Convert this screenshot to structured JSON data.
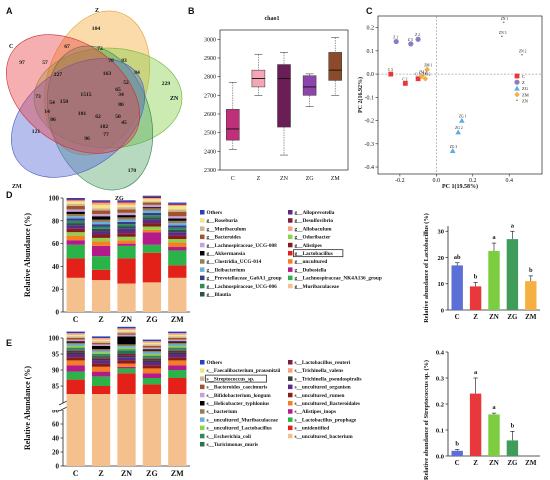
{
  "panels": {
    "a": "A",
    "b": "B",
    "c": "C",
    "d": "D",
    "e": "E"
  },
  "colors": {
    "C": "#e8383b",
    "Z": "#f5b041",
    "ZN": "#7ccd3f",
    "ZG": "#3f9c5a",
    "ZM": "#5c6fd6",
    "box_C": "#c0307a",
    "box_Z": "#f3a6b6",
    "box_ZN": "#6a1e55",
    "box_ZG": "#8e44ad",
    "box_ZM": "#8b4a2b"
  },
  "chart_data": [
    {
      "type": "venn",
      "sets": [
        "C",
        "Z",
        "ZN",
        "ZG",
        "ZM"
      ],
      "labels": {
        "C": "C",
        "Z": "Z",
        "ZN": "ZN",
        "ZG": "ZG",
        "ZM": "ZM"
      },
      "values": [
        "104",
        "97",
        "229",
        "170",
        "121",
        "67",
        "72",
        "57",
        "227",
        "83",
        "163",
        "84",
        "78",
        "73",
        "54",
        "150",
        "86",
        "14",
        "1515",
        "86",
        "34",
        "52",
        "65",
        "101",
        "62",
        "102",
        "50",
        "45",
        "96",
        "77"
      ]
    },
    {
      "type": "box",
      "title": "chao1",
      "categories": [
        "C",
        "Z",
        "ZN",
        "ZG",
        "ZM"
      ],
      "yticks": [
        "2300",
        "2400",
        "2500",
        "2600",
        "2700",
        "2800",
        "2900",
        "3000"
      ],
      "ylim": [
        2300,
        3050
      ],
      "boxes": [
        {
          "name": "C",
          "min": 2410,
          "q1": 2460,
          "median": 2520,
          "q3": 2625,
          "max": 2770
        },
        {
          "name": "Z",
          "min": 2700,
          "q1": 2745,
          "median": 2790,
          "q3": 2835,
          "max": 2920
        },
        {
          "name": "ZN",
          "min": 2380,
          "q1": 2530,
          "median": 2790,
          "q3": 2865,
          "max": 2930
        },
        {
          "name": "ZG",
          "min": 2640,
          "q1": 2700,
          "median": 2745,
          "q3": 2805,
          "max": 2815
        },
        {
          "name": "ZM",
          "min": 2700,
          "q1": 2780,
          "median": 2835,
          "q3": 2930,
          "max": 3010
        }
      ]
    },
    {
      "type": "scatter",
      "xlabel": "PC 1(19.58%)",
      "ylabel": "PC 2(16.92%)",
      "xticks": [
        "-0.2",
        "0.0",
        "0.2",
        "0.4"
      ],
      "yticks": [
        "-0.4",
        "-0.3",
        "-0.2",
        "-0.1",
        "0.0",
        "0.1",
        "0.2"
      ],
      "xlim": [
        -0.32,
        0.58
      ],
      "ylim": [
        -0.43,
        0.25
      ],
      "legend": [
        {
          "name": "C",
          "color": "#e8383b",
          "shape": "square"
        },
        {
          "name": "Z",
          "color": "#8e7cc3",
          "shape": "circle"
        },
        {
          "name": "ZG",
          "color": "#5dade2",
          "shape": "triangle"
        },
        {
          "name": "ZM",
          "color": "#f5b041",
          "shape": "diamond"
        },
        {
          "name": "ZN",
          "color": "#666666",
          "shape": "star"
        }
      ],
      "points": [
        {
          "label": "C 1",
          "group": "C",
          "x": -0.1,
          "y": -0.02
        },
        {
          "label": "C 2",
          "group": "C",
          "x": -0.17,
          "y": -0.04
        },
        {
          "label": "C 3",
          "group": "C",
          "x": -0.25,
          "y": 0.0
        },
        {
          "label": "Z 1",
          "group": "Z",
          "x": -0.22,
          "y": 0.14
        },
        {
          "label": "Z 2",
          "group": "Z",
          "x": -0.1,
          "y": 0.15
        },
        {
          "label": "Z 3",
          "group": "Z",
          "x": -0.14,
          "y": 0.13
        },
        {
          "label": "ZG 1",
          "group": "ZG",
          "x": 0.14,
          "y": -0.2
        },
        {
          "label": "ZG 2",
          "group": "ZG",
          "x": 0.12,
          "y": -0.25
        },
        {
          "label": "ZG 3",
          "group": "ZG",
          "x": 0.09,
          "y": -0.33
        },
        {
          "label": "ZM 1",
          "group": "ZM",
          "x": -0.05,
          "y": 0.02
        },
        {
          "label": "ZM 2",
          "group": "ZM",
          "x": -0.06,
          "y": -0.02
        },
        {
          "label": "ZM 3",
          "group": "ZM",
          "x": -0.08,
          "y": -0.01
        },
        {
          "label": "ZN 1",
          "group": "ZN",
          "x": 0.37,
          "y": 0.22
        },
        {
          "label": "ZN 2",
          "group": "ZN",
          "x": 0.47,
          "y": 0.08
        },
        {
          "label": "ZN 3",
          "group": "ZN",
          "x": 0.36,
          "y": 0.16
        }
      ]
    },
    {
      "type": "stacked-bar",
      "ylabel": "Relative Abundance (%)",
      "categories": [
        "C",
        "Z",
        "ZN",
        "ZG",
        "ZM"
      ],
      "yticks": [
        "0",
        "20",
        "40",
        "60",
        "80",
        "100"
      ],
      "ylim": [
        0,
        100
      ],
      "series": [
        {
          "name": "g__Muribaculaceae",
          "color": "#f4c08e",
          "values": [
            30,
            28,
            25,
            26,
            30
          ]
        },
        {
          "name": "g__Lactobacillus",
          "color": "#e32119",
          "values": [
            17,
            9,
            22,
            26,
            11
          ]
        },
        {
          "name": "g__Lachnospiraceae_NK4A136_group",
          "color": "#2bb34a",
          "values": [
            12,
            12,
            11,
            7,
            13
          ]
        },
        {
          "name": "g__Dubosiella",
          "color": "#b51a8a",
          "values": [
            4,
            9,
            2,
            11,
            3
          ]
        },
        {
          "name": "g__uncultured",
          "color": "#f57f20",
          "values": [
            4,
            4,
            3,
            2,
            4
          ]
        },
        {
          "name": "g__Odoribacter",
          "color": "#8fd14f",
          "values": [
            3,
            3,
            3,
            3,
            3
          ]
        },
        {
          "name": "g__Alistipes",
          "color": "#8b1a1a",
          "values": [
            3,
            3,
            3,
            3,
            3
          ]
        },
        {
          "name": "g__Alloprevotella",
          "color": "#5b2a86",
          "values": [
            3,
            3,
            4,
            3,
            3
          ]
        },
        {
          "name": "g__Blautia",
          "color": "#2f4f4f",
          "values": [
            2,
            2,
            2,
            2,
            2
          ]
        },
        {
          "name": "g__Lachnospiraceae_UCG-006",
          "color": "#2e8b57",
          "values": [
            2,
            2,
            2,
            2,
            2
          ]
        },
        {
          "name": "g__Prevotellaceae_Ga6A1_group",
          "color": "#3a3a8c",
          "values": [
            2,
            2,
            2,
            2,
            2
          ]
        },
        {
          "name": "g__Ileibacterium",
          "color": "#6ab0de",
          "values": [
            2,
            2,
            2,
            2,
            2
          ]
        },
        {
          "name": "g__Clostridia_UCG-014",
          "color": "#9a7b4f",
          "values": [
            2,
            2,
            2,
            2,
            2
          ]
        },
        {
          "name": "g__Akkermansia",
          "color": "#000000",
          "values": [
            2,
            3,
            2,
            1,
            2
          ]
        },
        {
          "name": "g__Lachnospiraceae_UCG-008",
          "color": "#c9a0dc",
          "values": [
            2,
            2,
            2,
            2,
            2
          ]
        },
        {
          "name": "g__Bacteroides",
          "color": "#a0522d",
          "values": [
            3,
            3,
            3,
            2,
            4
          ]
        },
        {
          "name": "g__Muribaculum",
          "color": "#d2b48c",
          "values": [
            2,
            2,
            2,
            1,
            2
          ]
        },
        {
          "name": "g__Roseburia",
          "color": "#f0e68c",
          "values": [
            2,
            3,
            2,
            2,
            3
          ]
        },
        {
          "name": "g__Allobaculum",
          "color": "#ff9f80",
          "values": [
            1,
            2,
            2,
            1,
            1
          ]
        },
        {
          "name": "g__Desulfovibrio",
          "color": "#7f1d3f",
          "values": [
            1,
            1,
            1,
            1,
            1
          ]
        },
        {
          "name": "Others",
          "color": "#2a3fbf",
          "values": [
            1,
            1,
            1,
            1,
            1
          ]
        }
      ],
      "legend": [
        "Others",
        "g__Roseburia",
        "g__Muribaculum",
        "g__Bacteroides",
        "g__Lachnospiraceae_UCG-008",
        "g__Akkermansia",
        "g__Clostridia_UCG-014",
        "g__Ileibacterium",
        "g__Prevotellaceae_Ga6A1_group",
        "g__Lachnospiraceae_UCG-006",
        "g__Blautia",
        "g__Alloprevotella",
        "g__Desulfovibrio",
        "g__Allobaculum",
        "g__Odoribacter",
        "g__Alistipes",
        "g__Lactobacillus",
        "g__uncultured",
        "g__Dubosiella",
        "g__Lachnospiraceae_NK4A136_group",
        "g__Muribaculaceae"
      ],
      "highlight": "g__Lactobacillus"
    },
    {
      "type": "bar",
      "ylabel": "Relative abundance of Lactobacillus (%)",
      "categories": [
        "C",
        "Z",
        "ZN",
        "ZG",
        "ZM"
      ],
      "values": [
        17,
        9,
        22.5,
        27,
        11
      ],
      "errors": [
        1,
        1.5,
        3,
        3,
        2
      ],
      "letters": [
        "ab",
        "b",
        "a",
        "a",
        "b"
      ],
      "yticks": [
        "0",
        "10",
        "20",
        "30"
      ],
      "ylim": [
        0,
        32
      ]
    },
    {
      "type": "stacked-bar",
      "ylabel": "Relative Abundance (%)",
      "categories": [
        "C",
        "Z",
        "ZN",
        "ZG",
        "ZM"
      ],
      "yticks": [
        "0",
        "20",
        "40",
        "60",
        "80",
        "85",
        "90",
        "95",
        "100"
      ],
      "axis_break": true,
      "series": [
        {
          "name": "s__uncultured_bacterium",
          "color": "#f4c08e",
          "values": [
            82.5,
            82.5,
            82.5,
            82.5,
            82.5
          ]
        },
        {
          "name": "s__unidentified",
          "color": "#e32119",
          "values": [
            4.5,
            2.5,
            6.5,
            3,
            5
          ]
        },
        {
          "name": "s__Lactobacillus_prophage",
          "color": "#2bb34a",
          "values": [
            2.5,
            3,
            1.5,
            2,
            2.5
          ]
        },
        {
          "name": "s__Alistipes_inops",
          "color": "#b51a8a",
          "values": [
            2,
            1.5,
            0.5,
            1.5,
            1.5
          ]
        },
        {
          "name": "s__uncultured_Bacteroidales",
          "color": "#f57f20",
          "values": [
            1.5,
            1.5,
            1,
            1.5,
            1.5
          ]
        },
        {
          "name": "s__uncultured_rumen",
          "color": "#8b1a1a",
          "values": [
            1,
            1,
            1,
            1,
            1
          ]
        },
        {
          "name": "s__uncultured_organism",
          "color": "#5b2a86",
          "values": [
            1,
            1,
            1,
            1,
            1
          ]
        },
        {
          "name": "s__Trichinella_pseudospiralis",
          "color": "#3a3a3a",
          "values": [
            0.5,
            0.5,
            0.5,
            0.5,
            0.5
          ]
        },
        {
          "name": "s__Lactobacillus_reuteri",
          "color": "#7f1d3f",
          "values": [
            0.5,
            0.5,
            0.5,
            0.5,
            0.5
          ]
        },
        {
          "name": "s__Turicimonas_muris",
          "color": "#2f6f4f",
          "values": [
            0.5,
            0.5,
            1,
            0.5,
            0.5
          ]
        },
        {
          "name": "s__Escherichia_coli",
          "color": "#2e8b57",
          "values": [
            0.5,
            0.5,
            0.5,
            0.5,
            0.5
          ]
        },
        {
          "name": "s__uncultured_Lactobacillus",
          "color": "#8fd14f",
          "values": [
            0.5,
            0.5,
            0.5,
            0.5,
            0.5
          ]
        },
        {
          "name": "s__uncultured_Muribaculaceae",
          "color": "#6ab0de",
          "values": [
            0.5,
            0.5,
            0.5,
            0.5,
            0.5
          ]
        },
        {
          "name": "s__bacterium",
          "color": "#9a7b4f",
          "values": [
            0.5,
            0.5,
            0.5,
            0.5,
            0.5
          ]
        },
        {
          "name": "s__Helicobacter_typhlonius",
          "color": "#000000",
          "values": [
            0.5,
            1,
            2.5,
            0.5,
            0.5
          ]
        },
        {
          "name": "s__Bifidobacterium_longum",
          "color": "#c9a0dc",
          "values": [
            0.5,
            0.5,
            0.5,
            0.5,
            0.5
          ]
        },
        {
          "name": "s__Bacteroides_caecimuris",
          "color": "#a0522d",
          "values": [
            0.5,
            0.5,
            0.5,
            0.5,
            0.5
          ]
        },
        {
          "name": "s__Streptococcus_sp.",
          "color": "#d2b48c",
          "values": [
            0.5,
            0.5,
            0.5,
            0.5,
            0.5
          ]
        },
        {
          "name": "s__Faecalibacterium_prausnitzii",
          "color": "#f0e68c",
          "values": [
            0.5,
            0.5,
            0.5,
            0.5,
            0.5
          ]
        },
        {
          "name": "s__Trichinella_valens",
          "color": "#ff9f80",
          "values": [
            0.5,
            0.5,
            0.5,
            0.5,
            0.5
          ]
        },
        {
          "name": "Others",
          "color": "#2a3fbf",
          "values": [
            0.5,
            0.5,
            0.5,
            0.5,
            0.5
          ]
        }
      ],
      "legend": [
        "Others",
        "s__Faecalibacterium_prausnitzii",
        "s__Streptococcus_sp.",
        "s__Bacteroides_caecimuris",
        "s__Bifidobacterium_longum",
        "s__Helicobacter_typhlonius",
        "s__bacterium",
        "s__uncultured_Muribaculaceae",
        "s__uncultured_Lactobacillus",
        "s__Escherichia_coli",
        "s__Turicimonas_muris",
        "s__Lactobacillus_reuteri",
        "s__Trichinella_valens",
        "s__Trichinella_pseudospiralis",
        "s__uncultured_organism",
        "s__uncultured_rumen",
        "s__uncultured_Bacteroidales",
        "s__Alistipes_inops",
        "s__Lactobacillus_prophage",
        "s__unidentified",
        "s__uncultured_bacterium"
      ],
      "highlight": "s__Streptococcus_sp."
    },
    {
      "type": "bar",
      "ylabel": "Relative abundance of Streptococcus sp. (%)",
      "categories": [
        "C",
        "Z",
        "ZN",
        "ZG",
        "ZM"
      ],
      "values": [
        0.02,
        0.24,
        0.16,
        0.06,
        0.0
      ],
      "errors": [
        0.005,
        0.06,
        0.005,
        0.035,
        0
      ],
      "letters": [
        "b",
        "a",
        "a",
        "b",
        ""
      ],
      "yticks": [
        "0.0",
        "0.1",
        "0.2",
        "0.3",
        "0.4"
      ],
      "ylim": [
        0,
        0.4
      ]
    }
  ]
}
